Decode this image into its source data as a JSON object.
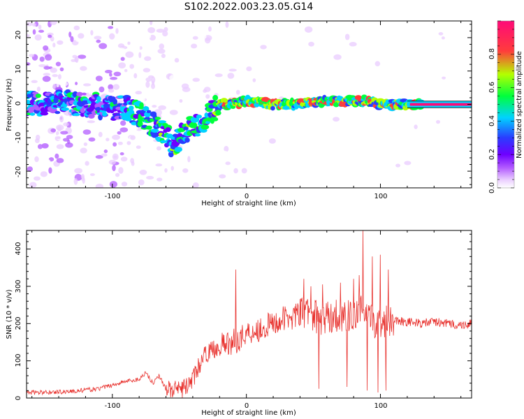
{
  "figure": {
    "title": "S102.2022.003.23.05.G14"
  },
  "colors": {
    "snr_line": "#e8322e",
    "colormap": [
      "#ffffff",
      "#e9ccff",
      "#b35cff",
      "#6e00ff",
      "#2a3cff",
      "#00d2ff",
      "#00ff3c",
      "#b4ff00",
      "#ff3c3c",
      "#ff0a78"
    ]
  },
  "chart_data": [
    {
      "type": "heatmap",
      "title": "S102.2022.003.23.05.G14",
      "xlabel": "Height of straight line (km)",
      "ylabel": "Frequency (Hz)",
      "xlim": [
        -164,
        168
      ],
      "ylim": [
        -25,
        25
      ],
      "x_ticks": [
        "-100",
        "0",
        "100"
      ],
      "y_ticks": [
        "20",
        "10",
        "0",
        "-10",
        "-20"
      ],
      "colorbar": {
        "label": "Normalized spectral amplitude",
        "range": [
          0.0,
          1.0
        ],
        "ticks": [
          "0.0",
          "0.2",
          "0.4",
          "0.6",
          "0.8"
        ]
      },
      "ridge": {
        "x": [
          -164,
          -140,
          -120,
          -100,
          -90,
          -80,
          -70,
          -60,
          -55,
          -50,
          -45,
          -40,
          -35,
          -30,
          -25,
          -20,
          -10,
          0,
          20,
          40,
          60,
          80,
          90,
          100,
          110,
          120,
          168
        ],
        "y": [
          0,
          1,
          0,
          -1,
          -1,
          -3,
          -6,
          -9,
          -13,
          -10,
          -8,
          -7,
          -6,
          -4,
          -2,
          0,
          0,
          1,
          0,
          0,
          1,
          1,
          1,
          0,
          0,
          0,
          0
        ]
      }
    },
    {
      "type": "line",
      "xlabel": "Height of straight line (km)",
      "ylabel": "SNR (10 * v/v)",
      "xlim": [
        -164,
        168
      ],
      "ylim": [
        0,
        450
      ],
      "x_ticks": [
        "-100",
        "0",
        "100"
      ],
      "y_ticks": [
        "0",
        "100",
        "200",
        "300",
        "400"
      ],
      "series": [
        {
          "x": [
            -164,
            -150,
            -130,
            -110,
            -100,
            -90,
            -80,
            -75,
            -70,
            -65,
            -60,
            -50,
            -45,
            -40,
            -35,
            -30,
            -25,
            -20,
            -15,
            -10,
            -5,
            0,
            10,
            20,
            30,
            40,
            45,
            50,
            55,
            60,
            65,
            70,
            75,
            80,
            85,
            87,
            90,
            95,
            100,
            102,
            105,
            110,
            120,
            130,
            140,
            150,
            160,
            168
          ],
          "values": [
            15,
            15,
            18,
            25,
            35,
            45,
            50,
            70,
            40,
            60,
            25,
            20,
            30,
            50,
            90,
            120,
            130,
            140,
            145,
            150,
            160,
            175,
            185,
            200,
            215,
            225,
            230,
            225,
            210,
            215,
            220,
            225,
            220,
            215,
            230,
            240,
            210,
            205,
            200,
            205,
            210,
            210,
            205,
            200,
            205,
            200,
            195,
            200
          ]
        }
      ],
      "spikes": [
        {
          "x": -8,
          "y": 345
        },
        {
          "x": 43,
          "y": 320
        },
        {
          "x": 48,
          "y": 300
        },
        {
          "x": 54,
          "y": 25
        },
        {
          "x": 57,
          "y": 305
        },
        {
          "x": 70,
          "y": 310
        },
        {
          "x": 75,
          "y": 30
        },
        {
          "x": 80,
          "y": 320
        },
        {
          "x": 84,
          "y": 330
        },
        {
          "x": 87,
          "y": 450
        },
        {
          "x": 90,
          "y": 20
        },
        {
          "x": 94,
          "y": 380
        },
        {
          "x": 98,
          "y": 15
        },
        {
          "x": 100,
          "y": 385
        },
        {
          "x": 104,
          "y": 20
        },
        {
          "x": 106,
          "y": 345
        }
      ]
    }
  ]
}
